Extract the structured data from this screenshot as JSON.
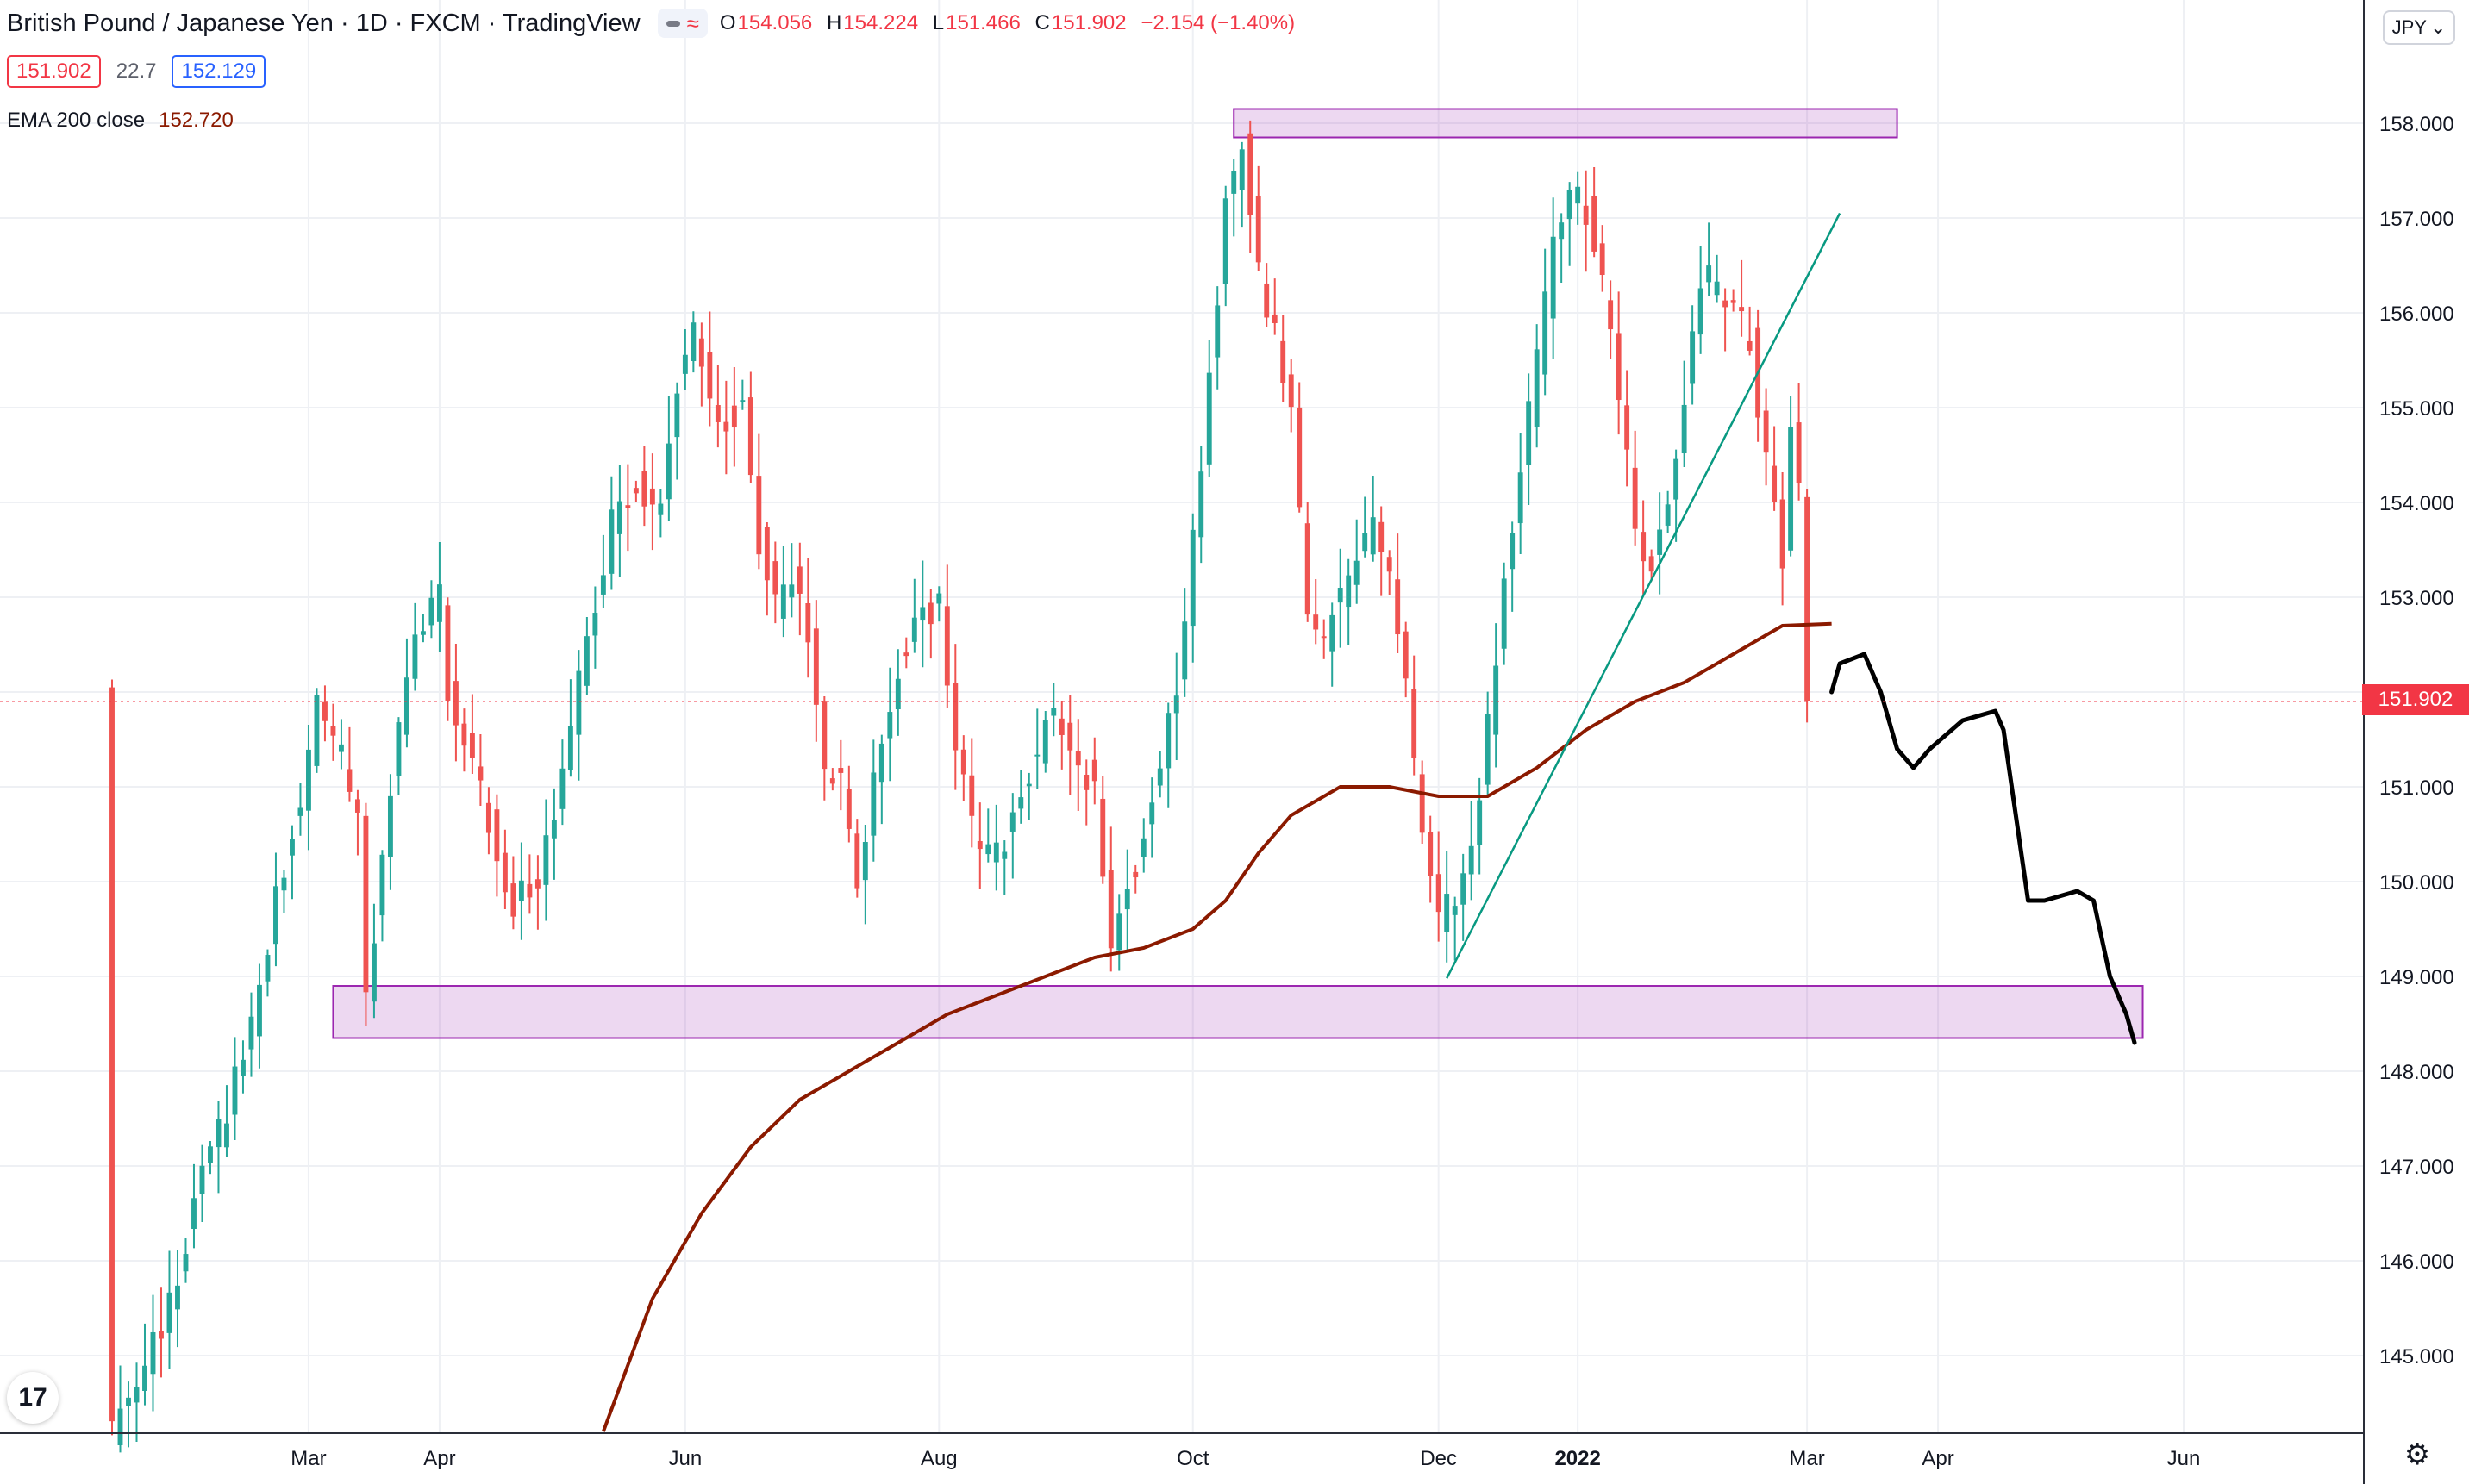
{
  "legend": {
    "symbol": "British Pound / Japanese Yen",
    "interval": "1D",
    "exchange": "FXCM",
    "source": "TradingView",
    "open_key": "O",
    "open": "154.056",
    "high_key": "H",
    "high": "154.224",
    "low_key": "L",
    "low": "151.466",
    "close_key": "C",
    "close": "151.902",
    "change": "−2.154 (−1.40%)"
  },
  "quote": {
    "bid": "151.902",
    "spread": "22.7",
    "ask": "152.129"
  },
  "indicator": {
    "label": "EMA 200 close",
    "value": "152.720"
  },
  "currency_button": "JPY",
  "last_price_tag": "151.902",
  "colors": {
    "up": "#26a69a",
    "down": "#ef5350",
    "ema": "#8b1a00",
    "zone": "#9c27b0",
    "trendline": "#089981"
  },
  "chart_data": {
    "type": "candlestick",
    "title": "British Pound / Japanese Yen",
    "ylim": [
      144.2,
      159.0
    ],
    "yticks": [
      "158.000",
      "157.000",
      "156.000",
      "155.000",
      "154.000",
      "153.000",
      "152.000",
      "151.000",
      "150.000",
      "149.000",
      "148.000",
      "147.000",
      "146.000",
      "145.000"
    ],
    "y_values": [
      158,
      157,
      156,
      155,
      154,
      153,
      152,
      151,
      150,
      149,
      148,
      147,
      146,
      145
    ],
    "xticks": [
      "Mar",
      "Apr",
      "Jun",
      "Aug",
      "Oct",
      "Dec",
      "2022",
      "Mar",
      "Apr",
      "Jun"
    ],
    "x_ticks_index": [
      30,
      46,
      76,
      107,
      138,
      168,
      185,
      213,
      229,
      259
    ],
    "x_range": [
      6,
      265
    ],
    "price_path": [
      [
        6,
        144.2
      ],
      [
        10,
        144.9
      ],
      [
        14,
        145.8
      ],
      [
        17,
        146.9
      ],
      [
        20,
        147.6
      ],
      [
        23,
        148.5
      ],
      [
        26,
        149.8
      ],
      [
        29,
        150.9
      ],
      [
        31,
        151.8
      ],
      [
        34,
        151.3
      ],
      [
        36,
        150.6
      ],
      [
        37,
        148.8
      ],
      [
        38,
        149.5
      ],
      [
        40,
        151.0
      ],
      [
        42,
        152.1
      ],
      [
        44,
        152.8
      ],
      [
        46,
        153.0
      ],
      [
        47,
        152.0
      ],
      [
        50,
        151.3
      ],
      [
        53,
        150.3
      ],
      [
        55,
        149.8
      ],
      [
        58,
        150.0
      ],
      [
        61,
        151.2
      ],
      [
        64,
        152.6
      ],
      [
        67,
        153.8
      ],
      [
        70,
        154.2
      ],
      [
        73,
        153.9
      ],
      [
        75,
        155.2
      ],
      [
        77,
        155.8
      ],
      [
        79,
        155.1
      ],
      [
        81,
        154.9
      ],
      [
        83,
        155.0
      ],
      [
        85,
        153.6
      ],
      [
        87,
        152.9
      ],
      [
        89,
        153.3
      ],
      [
        91,
        152.6
      ],
      [
        93,
        151.2
      ],
      [
        95,
        151.1
      ],
      [
        97,
        149.9
      ],
      [
        99,
        151.0
      ],
      [
        102,
        152.3
      ],
      [
        104,
        152.8
      ],
      [
        107,
        152.9
      ],
      [
        109,
        151.4
      ],
      [
        112,
        150.2
      ],
      [
        115,
        150.4
      ],
      [
        118,
        151.2
      ],
      [
        121,
        151.8
      ],
      [
        123,
        151.4
      ],
      [
        126,
        151.0
      ],
      [
        128,
        149.4
      ],
      [
        131,
        150.2
      ],
      [
        134,
        151.2
      ],
      [
        136,
        152.1
      ],
      [
        138,
        153.6
      ],
      [
        140,
        155.4
      ],
      [
        142,
        157.1
      ],
      [
        144,
        157.8
      ],
      [
        146,
        156.4
      ],
      [
        148,
        155.8
      ],
      [
        150,
        154.9
      ],
      [
        152,
        152.9
      ],
      [
        154,
        152.6
      ],
      [
        157,
        153.2
      ],
      [
        160,
        153.8
      ],
      [
        162,
        153.1
      ],
      [
        164,
        152.2
      ],
      [
        166,
        150.4
      ],
      [
        168,
        149.6
      ],
      [
        170,
        149.9
      ],
      [
        172,
        150.3
      ],
      [
        174,
        151.6
      ],
      [
        176,
        153.2
      ],
      [
        178,
        154.4
      ],
      [
        180,
        155.5
      ],
      [
        182,
        156.7
      ],
      [
        184,
        157.3
      ],
      [
        186,
        157.1
      ],
      [
        188,
        156.3
      ],
      [
        190,
        155.1
      ],
      [
        192,
        153.7
      ],
      [
        194,
        153.4
      ],
      [
        196,
        154.0
      ],
      [
        198,
        155.1
      ],
      [
        200,
        156.4
      ],
      [
        202,
        156.3
      ],
      [
        204,
        156.0
      ],
      [
        206,
        155.7
      ],
      [
        208,
        154.4
      ],
      [
        210,
        153.4
      ],
      [
        211,
        154.7
      ],
      [
        212,
        154.1
      ],
      [
        213,
        152.0
      ]
    ],
    "ema200": [
      [
        66,
        144.2
      ],
      [
        72,
        145.6
      ],
      [
        78,
        146.5
      ],
      [
        84,
        147.2
      ],
      [
        90,
        147.7
      ],
      [
        96,
        148.0
      ],
      [
        102,
        148.3
      ],
      [
        108,
        148.6
      ],
      [
        114,
        148.8
      ],
      [
        120,
        149.0
      ],
      [
        126,
        149.2
      ],
      [
        132,
        149.3
      ],
      [
        138,
        149.5
      ],
      [
        142,
        149.8
      ],
      [
        146,
        150.3
      ],
      [
        150,
        150.7
      ],
      [
        156,
        151.0
      ],
      [
        162,
        151.0
      ],
      [
        168,
        150.9
      ],
      [
        174,
        150.9
      ],
      [
        180,
        151.2
      ],
      [
        186,
        151.6
      ],
      [
        192,
        151.9
      ],
      [
        198,
        152.1
      ],
      [
        204,
        152.4
      ],
      [
        210,
        152.7
      ],
      [
        216,
        152.72
      ]
    ],
    "zones": [
      {
        "x": [
          143,
          224
        ],
        "y": [
          157.85,
          158.15
        ]
      },
      {
        "x": [
          33,
          254
        ],
        "y": [
          148.35,
          148.9
        ]
      }
    ],
    "trendline": [
      [
        169,
        148.98
      ],
      [
        217,
        157.05
      ]
    ],
    "projection": [
      [
        216,
        152.0
      ],
      [
        217,
        152.3
      ],
      [
        220,
        152.4
      ],
      [
        222,
        152.0
      ],
      [
        224,
        151.4
      ],
      [
        226,
        151.2
      ],
      [
        228,
        151.4
      ],
      [
        232,
        151.7
      ],
      [
        236,
        151.8
      ],
      [
        237,
        151.6
      ],
      [
        239,
        150.4
      ],
      [
        240,
        149.8
      ],
      [
        242,
        149.8
      ],
      [
        246,
        149.9
      ],
      [
        248,
        149.8
      ],
      [
        250,
        149.0
      ],
      [
        252,
        148.6
      ],
      [
        253,
        148.3
      ]
    ],
    "last_price_line": 151.902,
    "grid": true
  }
}
